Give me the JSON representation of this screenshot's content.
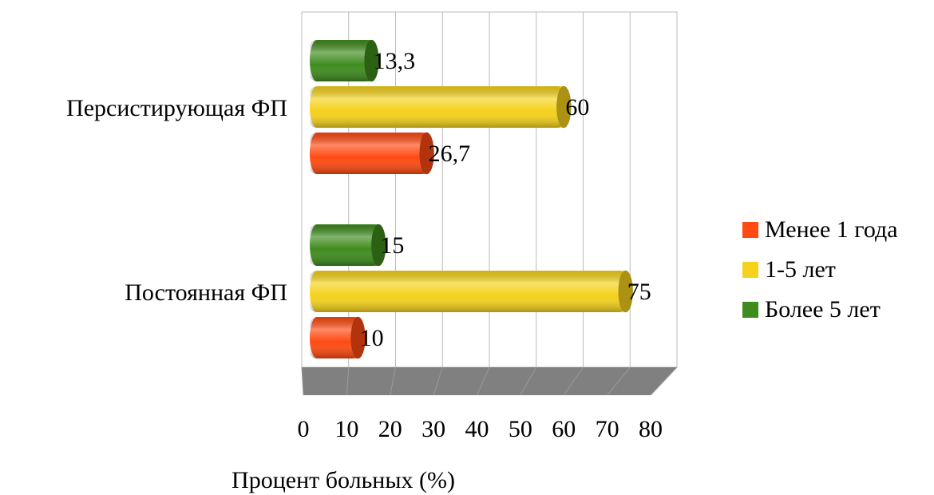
{
  "chart_data": {
    "type": "bar",
    "orientation": "horizontal",
    "categories": [
      "Персистирующая ФП",
      "Постоянная ФП"
    ],
    "series": [
      {
        "name": "Менее 1 года",
        "color": "#ff4a12",
        "values": [
          26.7,
          10
        ],
        "value_labels": [
          "26,7",
          "10"
        ]
      },
      {
        "name": "1-5 лет",
        "color": "#f5d21c",
        "values": [
          60,
          75
        ],
        "value_labels": [
          "60",
          "75"
        ]
      },
      {
        "name": "Более 5 лет",
        "color": "#3f8c1e",
        "values": [
          13.3,
          15
        ],
        "value_labels": [
          "13,3",
          "15"
        ]
      }
    ],
    "xlabel": "Процент больных (%)",
    "xlim": [
      0,
      80
    ],
    "xticks": [
      0,
      10,
      20,
      30,
      40,
      50,
      60,
      70,
      80
    ],
    "grid": true,
    "legend": "right"
  }
}
